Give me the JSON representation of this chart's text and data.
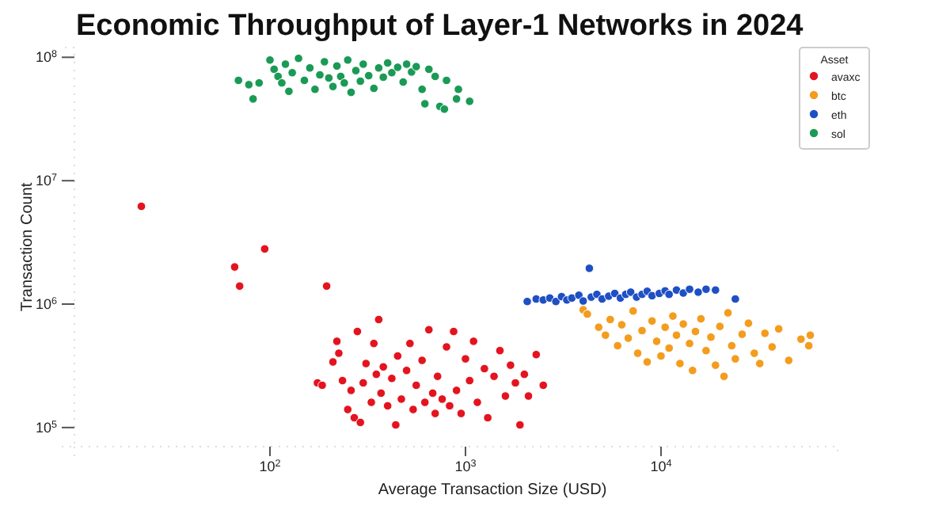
{
  "chart_data": {
    "type": "scatter",
    "title": "Economic Throughput of Layer-1 Networks in 2024",
    "xlabel": "Average Transaction Size (USD)",
    "ylabel": "Transaction Count",
    "legend_title": "Asset",
    "log": "xy",
    "legend": "top right",
    "marker": "circle",
    "xlim": [
      10,
      80000
    ],
    "ylim": [
      70000,
      120000000
    ],
    "xticks": [
      {
        "value": 100,
        "label": "10$^{2}$"
      },
      {
        "value": 1000,
        "label": "10$^{3}$"
      },
      {
        "value": 10000,
        "label": "10$^{4}$"
      }
    ],
    "yticks": [
      {
        "value": 100000,
        "label": "10$^{5}$"
      },
      {
        "value": 1000000,
        "label": "10$^{6}$"
      },
      {
        "value": 10000000,
        "label": "10$^{7}$"
      },
      {
        "value": 100000000,
        "label": "10$^{8}$"
      }
    ],
    "series": [
      {
        "name": "avaxc",
        "color": "#e3141f",
        "x": [
          22,
          66,
          70,
          94,
          195,
          175,
          185,
          210,
          220,
          225,
          235,
          250,
          260,
          270,
          280,
          290,
          300,
          310,
          330,
          340,
          350,
          360,
          370,
          380,
          400,
          420,
          440,
          450,
          470,
          500,
          520,
          540,
          560,
          600,
          620,
          650,
          680,
          700,
          720,
          760,
          800,
          830,
          870,
          900,
          950,
          1000,
          1050,
          1100,
          1150,
          1250,
          1300,
          1400,
          1500,
          1600,
          1700,
          1800,
          1900,
          2000,
          2100,
          2300,
          2500
        ],
        "values": [
          6200000,
          2000000,
          1400000,
          2800000,
          1400000,
          230000,
          220000,
          340000,
          500000,
          400000,
          240000,
          140000,
          200000,
          120000,
          600000,
          110000,
          230000,
          330000,
          160000,
          480000,
          270000,
          750000,
          190000,
          310000,
          150000,
          250000,
          105000,
          380000,
          170000,
          290000,
          480000,
          140000,
          220000,
          350000,
          160000,
          620000,
          190000,
          130000,
          260000,
          170000,
          450000,
          150000,
          600000,
          200000,
          130000,
          360000,
          240000,
          500000,
          160000,
          300000,
          120000,
          260000,
          420000,
          180000,
          320000,
          230000,
          105000,
          270000,
          180000,
          390000,
          220000
        ]
      },
      {
        "name": "btc",
        "color": "#f39c1e",
        "x": [
          4000,
          4200,
          4800,
          5200,
          5500,
          6000,
          6300,
          6800,
          7200,
          7600,
          8000,
          8500,
          9000,
          9500,
          10000,
          10500,
          11000,
          11500,
          12000,
          12500,
          13000,
          14000,
          14500,
          15000,
          16000,
          17000,
          18000,
          19000,
          20000,
          21000,
          22000,
          23000,
          24000,
          26000,
          28000,
          30000,
          32000,
          34000,
          37000,
          40000,
          45000,
          52000,
          58000,
          57000
        ],
        "values": [
          900000,
          830000,
          650000,
          560000,
          750000,
          460000,
          680000,
          530000,
          880000,
          400000,
          610000,
          340000,
          730000,
          500000,
          380000,
          650000,
          440000,
          800000,
          560000,
          330000,
          690000,
          480000,
          290000,
          600000,
          760000,
          420000,
          540000,
          320000,
          660000,
          260000,
          850000,
          460000,
          360000,
          570000,
          700000,
          400000,
          330000,
          580000,
          450000,
          630000,
          350000,
          520000,
          560000,
          460000
        ]
      },
      {
        "name": "eth",
        "color": "#1f4fc4",
        "x": [
          2070,
          2300,
          2500,
          2700,
          2900,
          3100,
          3300,
          3500,
          3800,
          4000,
          4300,
          4400,
          4700,
          5000,
          5400,
          5800,
          6200,
          6600,
          7000,
          7500,
          8000,
          8500,
          9000,
          9800,
          10500,
          11000,
          12000,
          13000,
          14000,
          15500,
          17000,
          19000,
          24000
        ],
        "values": [
          1050000,
          1100000,
          1080000,
          1120000,
          1050000,
          1150000,
          1080000,
          1120000,
          1180000,
          1060000,
          1950000,
          1140000,
          1200000,
          1100000,
          1160000,
          1220000,
          1120000,
          1200000,
          1250000,
          1140000,
          1200000,
          1270000,
          1170000,
          1220000,
          1280000,
          1200000,
          1300000,
          1230000,
          1320000,
          1250000,
          1320000,
          1300000,
          1100000
        ]
      },
      {
        "name": "sol",
        "color": "#1a9a55",
        "x": [
          69,
          78,
          82,
          88,
          100,
          105,
          110,
          115,
          120,
          125,
          130,
          140,
          150,
          160,
          170,
          180,
          190,
          200,
          210,
          220,
          230,
          240,
          250,
          260,
          275,
          290,
          300,
          320,
          340,
          360,
          380,
          400,
          420,
          450,
          480,
          500,
          530,
          560,
          600,
          620,
          650,
          700,
          740,
          780,
          800,
          900,
          920,
          1050
        ],
        "values": [
          65000000,
          60000000,
          46000000,
          62000000,
          95000000,
          80000000,
          70000000,
          62000000,
          88000000,
          53000000,
          75000000,
          98000000,
          65000000,
          82000000,
          55000000,
          72000000,
          92000000,
          68000000,
          58000000,
          85000000,
          70000000,
          62000000,
          95000000,
          52000000,
          78000000,
          64000000,
          88000000,
          71000000,
          56000000,
          82000000,
          69000000,
          90000000,
          75000000,
          83000000,
          63000000,
          88000000,
          76000000,
          84000000,
          55000000,
          42000000,
          80000000,
          70000000,
          40000000,
          38000000,
          65000000,
          46000000,
          55000000,
          44000000
        ]
      }
    ]
  }
}
